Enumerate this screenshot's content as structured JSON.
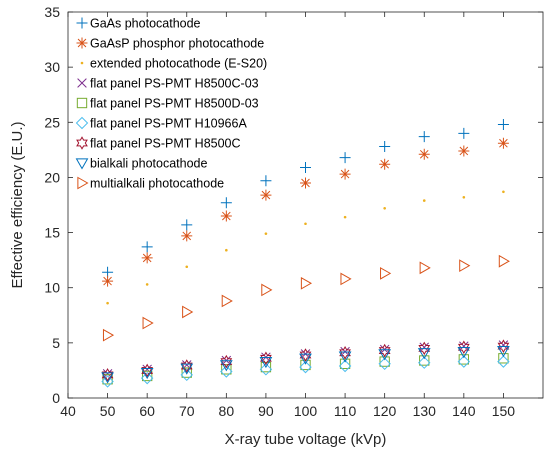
{
  "chart_data": {
    "type": "scatter",
    "xlabel": "X-ray tube voltage (kVp)",
    "ylabel": "Effective efficiency (E.U.)",
    "xlim": [
      40,
      160
    ],
    "ylim": [
      0,
      35
    ],
    "xticks": [
      40,
      50,
      60,
      70,
      80,
      90,
      100,
      110,
      120,
      130,
      140,
      150
    ],
    "yticks": [
      0,
      5,
      10,
      15,
      20,
      25,
      30,
      35
    ],
    "grid": false,
    "legend_position": "top-left",
    "x": [
      50,
      60,
      70,
      80,
      90,
      100,
      110,
      120,
      130,
      140,
      150
    ],
    "series": [
      {
        "name": "GaAs photocathode",
        "marker": "plus",
        "color": "#0072bd",
        "values": [
          11.4,
          13.7,
          15.7,
          17.7,
          19.7,
          20.9,
          21.8,
          22.8,
          23.7,
          24.0,
          24.8
        ]
      },
      {
        "name": "GaAsP phosphor photocathode",
        "marker": "asterisk",
        "color": "#d95319",
        "values": [
          10.6,
          12.7,
          14.7,
          16.5,
          18.4,
          19.5,
          20.3,
          21.2,
          22.1,
          22.4,
          23.1
        ]
      },
      {
        "name": "extended photocathode (E-S20)",
        "marker": "point",
        "color": "#edb120",
        "values": [
          8.6,
          10.3,
          11.9,
          13.4,
          14.9,
          15.8,
          16.4,
          17.2,
          17.9,
          18.2,
          18.7
        ]
      },
      {
        "name": "flat panel PS-PMT H8500C-03",
        "marker": "x",
        "color": "#7e2f8e",
        "values": [
          2.2,
          2.6,
          3.0,
          3.4,
          3.7,
          4.0,
          4.2,
          4.4,
          4.6,
          4.7,
          4.8
        ]
      },
      {
        "name": "flat panel PS-PMT H8500D-03",
        "marker": "square",
        "color": "#77ac30",
        "values": [
          1.7,
          2.0,
          2.3,
          2.6,
          2.8,
          3.0,
          3.1,
          3.3,
          3.4,
          3.5,
          3.6
        ]
      },
      {
        "name": "flat panel PS-PMT H10966A",
        "marker": "diamond",
        "color": "#4dbeee",
        "values": [
          1.5,
          1.8,
          2.1,
          2.4,
          2.6,
          2.8,
          2.9,
          3.1,
          3.2,
          3.3,
          3.3
        ]
      },
      {
        "name": "flat panel PS-PMT H8500C",
        "marker": "hexagram",
        "color": "#a2142f",
        "values": [
          2.1,
          2.5,
          2.9,
          3.3,
          3.6,
          3.9,
          4.1,
          4.3,
          4.5,
          4.6,
          4.7
        ]
      },
      {
        "name": "bialkali photocathode",
        "marker": "triangle-down",
        "color": "#0072bd",
        "values": [
          1.9,
          2.3,
          2.7,
          3.0,
          3.3,
          3.6,
          3.8,
          4.0,
          4.1,
          4.2,
          4.3
        ]
      },
      {
        "name": "multialkali photocathode",
        "marker": "triangle-right",
        "color": "#d95319",
        "values": [
          5.7,
          6.8,
          7.8,
          8.8,
          9.8,
          10.4,
          10.8,
          11.3,
          11.8,
          12.0,
          12.4
        ]
      }
    ]
  }
}
